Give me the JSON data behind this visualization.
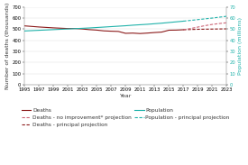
{
  "title_left": "Number of deaths (thousands)",
  "title_right": "Population (millions)",
  "xlabel": "Year",
  "ylim_left": [
    0,
    700
  ],
  "ylim_right": [
    0,
    70
  ],
  "yticks_left": [
    0,
    100,
    200,
    300,
    400,
    500,
    600,
    700
  ],
  "yticks_right": [
    0,
    10,
    20,
    30,
    40,
    50,
    60,
    70
  ],
  "bg_color": "#ffffff",
  "deaths_years": [
    1995,
    1996,
    1997,
    1998,
    1999,
    2000,
    2001,
    2002,
    2003,
    2004,
    2005,
    2006,
    2007,
    2008,
    2009,
    2010,
    2011,
    2012,
    2013,
    2014,
    2015,
    2016,
    2017
  ],
  "deaths_values": [
    529,
    524,
    519,
    515,
    511,
    508,
    505,
    505,
    501,
    495,
    491,
    484,
    481,
    479,
    462,
    464,
    460,
    464,
    469,
    473,
    490,
    491,
    494
  ],
  "pop_years": [
    1995,
    1996,
    1997,
    1998,
    1999,
    2000,
    2001,
    2002,
    2003,
    2004,
    2005,
    2006,
    2007,
    2008,
    2009,
    2010,
    2011,
    2012,
    2013,
    2014,
    2015,
    2016,
    2017
  ],
  "pop_values": [
    48.3,
    48.6,
    48.9,
    49.2,
    49.5,
    49.8,
    50.1,
    50.4,
    50.7,
    51.0,
    51.4,
    51.8,
    52.2,
    52.6,
    53.0,
    53.5,
    53.9,
    54.3,
    54.8,
    55.3,
    55.9,
    56.5,
    57.1
  ],
  "proj_deaths_principal_years": [
    2017,
    2018,
    2019,
    2020,
    2021,
    2022,
    2023
  ],
  "proj_deaths_principal_values": [
    494,
    496,
    498,
    499,
    500,
    501,
    502
  ],
  "proj_deaths_noimprove_years": [
    2017,
    2018,
    2019,
    2020,
    2021,
    2022,
    2023
  ],
  "proj_deaths_noimprove_values": [
    494,
    505,
    518,
    531,
    542,
    550,
    557
  ],
  "proj_pop_years": [
    2017,
    2018,
    2019,
    2020,
    2021,
    2022,
    2023
  ],
  "proj_pop_values": [
    57.1,
    57.8,
    58.5,
    59.2,
    59.9,
    60.7,
    61.5
  ],
  "color_deaths": "#8b1a1a",
  "color_pop": "#20b2aa",
  "color_proj_deaths_principal": "#8b1a1a",
  "color_proj_deaths_noimprove": "#cc6677",
  "color_proj_pop": "#20b2aa",
  "xticks": [
    1995,
    1997,
    1999,
    2001,
    2003,
    2005,
    2007,
    2009,
    2011,
    2013,
    2015,
    2017,
    2019,
    2021,
    2023
  ],
  "legend_fontsize": 4.2,
  "axis_fontsize": 4.5,
  "tick_fontsize": 3.8,
  "linewidth": 0.8
}
